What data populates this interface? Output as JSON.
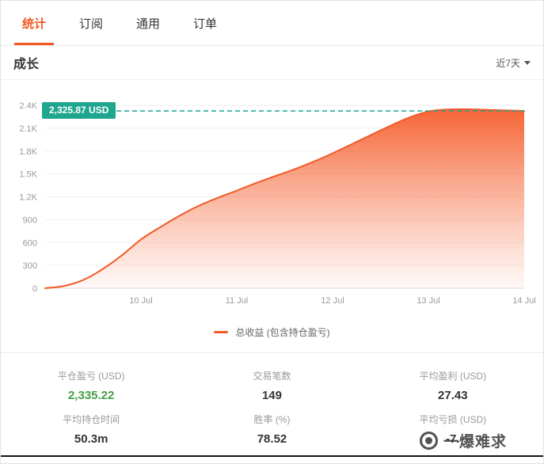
{
  "tabs": [
    {
      "label": "统计",
      "active": true
    },
    {
      "label": "订阅",
      "active": false
    },
    {
      "label": "通用",
      "active": false
    },
    {
      "label": "订单",
      "active": false
    }
  ],
  "section": {
    "title": "成长",
    "range_label": "近7天"
  },
  "chart_data": {
    "type": "area",
    "title": "成长",
    "legend": "总收益 (包含持仓盈亏)",
    "legend_position": "bottom",
    "grid": true,
    "x_ticks": [
      "10 Jul",
      "11 Jul",
      "12 Jul",
      "13 Jul",
      "14 Jul"
    ],
    "y_ticks": [
      "0",
      "300",
      "600",
      "900",
      "1.2K",
      "1.5K",
      "1.8K",
      "2.1K",
      "2.4K"
    ],
    "ylim": [
      0,
      2400
    ],
    "x_domain": [
      9,
      14
    ],
    "reference_value": 2325.87,
    "reference_label": "2,325.87 USD",
    "colors": {
      "line": "#f15a29",
      "area_top": "#f4531f",
      "reference": "#1fa68f",
      "accent": "#f25822",
      "positive": "#43a047"
    },
    "series": [
      {
        "name": "总收益 (包含持仓盈亏)",
        "x": [
          9,
          9.2,
          9.4,
          9.6,
          9.8,
          10,
          10.2,
          10.4,
          10.6,
          10.8,
          11,
          11.2,
          11.4,
          11.6,
          11.8,
          12,
          12.2,
          12.4,
          12.6,
          12.8,
          13,
          13.2,
          13.4,
          13.6,
          13.8,
          14
        ],
        "values": [
          0,
          30,
          110,
          250,
          430,
          640,
          800,
          950,
          1080,
          1185,
          1280,
          1380,
          1470,
          1560,
          1660,
          1770,
          1890,
          2010,
          2130,
          2240,
          2320,
          2345,
          2348,
          2342,
          2334,
          2326
        ]
      }
    ]
  },
  "stats": [
    {
      "label": "平仓盈亏 (USD)",
      "value": "2,335.22"
    },
    {
      "label": "交易笔数",
      "value": "149"
    },
    {
      "label": "平均盈利 (USD)",
      "value": "27.43"
    },
    {
      "label": "平均持仓时间",
      "value": "50.3m"
    },
    {
      "label": "胜率 (%)",
      "value": "78.52"
    },
    {
      "label": "平均亏损 (USD)",
      "value": "-7."
    }
  ],
  "watermark": {
    "text": "一爆难求"
  }
}
